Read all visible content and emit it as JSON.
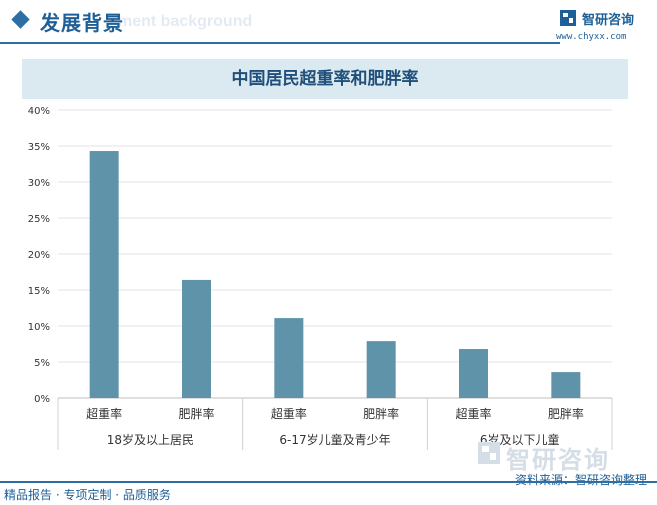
{
  "header": {
    "title": "发展背景",
    "subtitle_en": "ment background",
    "brand": "智研咨询",
    "url": "www.chyxx.com"
  },
  "colors": {
    "bar": "#5f93aa",
    "accent": "#2e6fa3",
    "title_band": "#dbe9f1"
  },
  "chart_data": {
    "type": "bar",
    "title": "中国居民超重率和肥胖率",
    "categories": [
      "超重率",
      "肥胖率",
      "超重率",
      "肥胖率",
      "超重率",
      "肥胖率"
    ],
    "groups": [
      {
        "label": "18岁及以上居民",
        "span": 2
      },
      {
        "label": "6-17岁儿童及青少年",
        "span": 2
      },
      {
        "label": "6岁及以下儿童",
        "span": 2
      }
    ],
    "values": [
      34.3,
      16.4,
      11.1,
      7.9,
      6.8,
      3.6
    ],
    "ylim": [
      0,
      40
    ],
    "yticks": [
      "0%",
      "5%",
      "10%",
      "15%",
      "20%",
      "25%",
      "30%",
      "35%",
      "40%"
    ],
    "grid": true
  },
  "footer": {
    "left": "精品报告 · 专项定制 · 品质服务",
    "source": "资料来源：智研咨询整理",
    "watermark": "智研咨询"
  }
}
